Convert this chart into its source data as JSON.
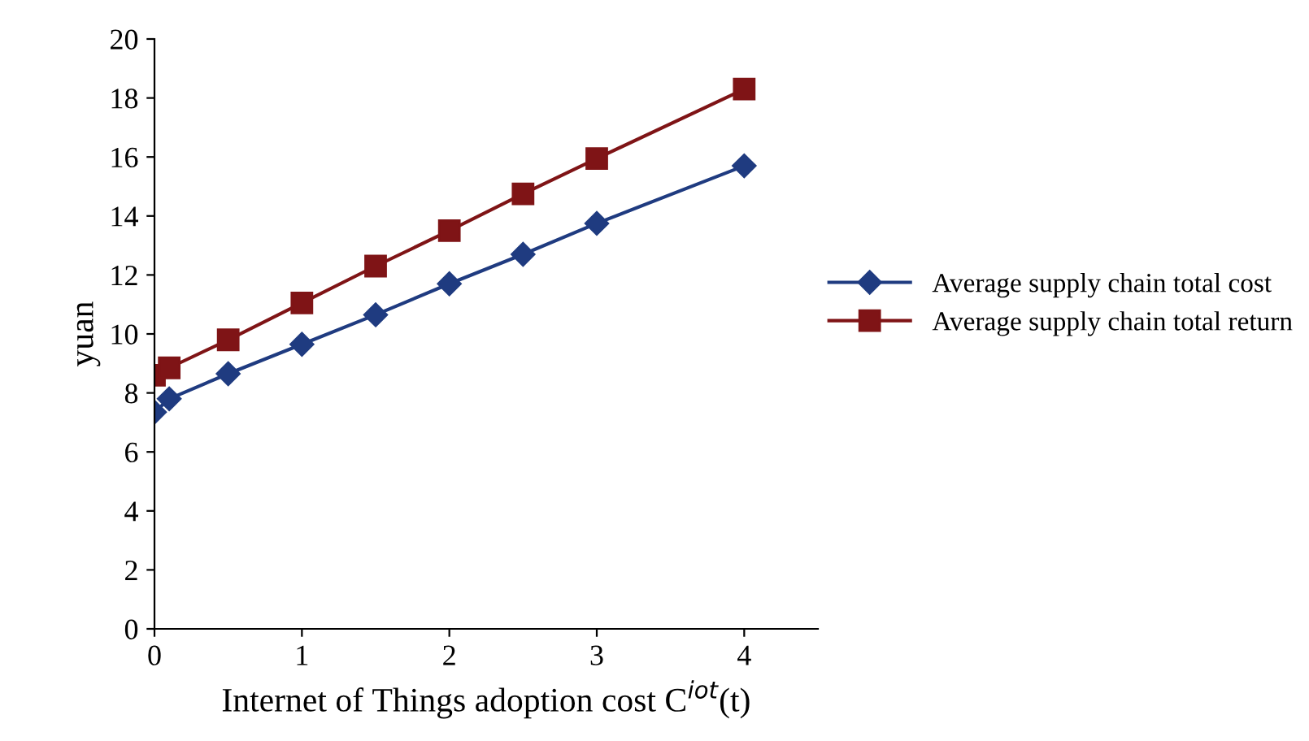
{
  "chart_data": {
    "type": "line",
    "xlabel": "Internet of Things adoption cost C$^{iot}$(t)",
    "ylabel": "yuan",
    "x": [
      0,
      0.1,
      0.5,
      1,
      1.5,
      2,
      2.5,
      3,
      4
    ],
    "series": [
      {
        "name": "Average supply chain total cost",
        "color": "#1f3b80",
        "marker": "diamond",
        "values": [
          7.35,
          7.8,
          8.65,
          9.65,
          10.65,
          11.7,
          12.7,
          13.75,
          15.7
        ]
      },
      {
        "name": "Average supply chain total return",
        "color": "#7f1416",
        "marker": "square",
        "values": [
          8.6,
          8.85,
          9.8,
          11.05,
          12.3,
          13.5,
          14.75,
          15.95,
          18.3
        ]
      }
    ],
    "xlim": [
      0,
      4.5
    ],
    "xticks": [
      0,
      1,
      2,
      3,
      4
    ],
    "ylim": [
      0,
      20
    ],
    "yticks": [
      0,
      2,
      4,
      6,
      8,
      10,
      12,
      14,
      16,
      18,
      20
    ],
    "grid": false,
    "legend": "right",
    "line_style": "solid"
  }
}
